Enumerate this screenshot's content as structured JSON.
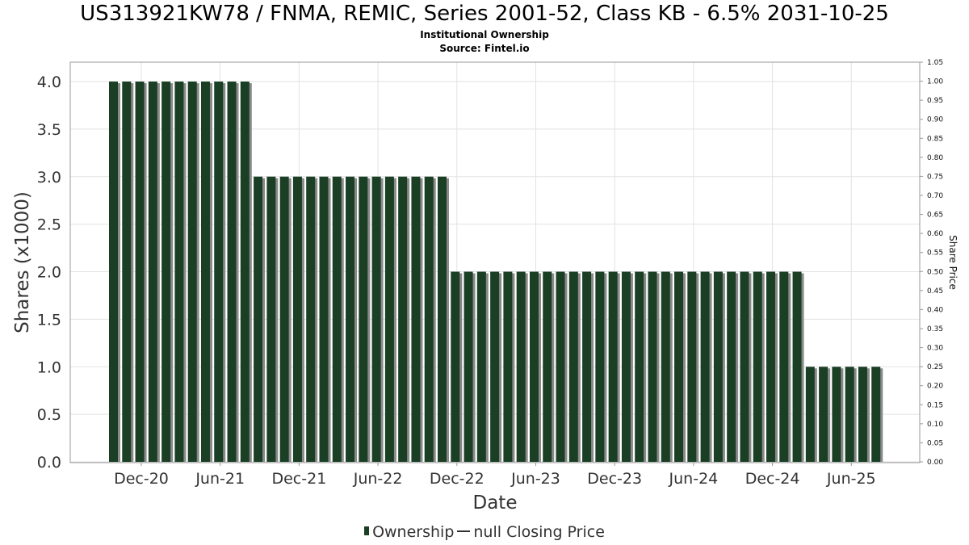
{
  "title": "US313921KW78 / FNMA, REMIC, Series 2001-52, Class KB - 6.5% 2031-10-25",
  "subtitle": "Institutional Ownership",
  "source": "Source: Fintel.io",
  "legend": {
    "ownership": "Ownership",
    "price": "null Closing Price"
  },
  "colors": {
    "bar": "#1b3f24",
    "bar_shadow": "#8a8a8a",
    "grid": "#e2e2e2",
    "axis": "#999999"
  },
  "chart_data": {
    "type": "bar",
    "xlabel": "Date",
    "ylabel": "Shares (x1000)",
    "y2label": "Share Price",
    "ylim": [
      0,
      4.2
    ],
    "y2lim": [
      0,
      1.05
    ],
    "yticks": [
      "0.0",
      "0.5",
      "1.0",
      "1.5",
      "2.0",
      "2.5",
      "3.0",
      "3.5",
      "4.0"
    ],
    "y2ticks": [
      "0.00",
      "0.05",
      "0.10",
      "0.15",
      "0.20",
      "0.25",
      "0.30",
      "0.35",
      "0.40",
      "0.45",
      "0.50",
      "0.55",
      "0.60",
      "0.65",
      "0.70",
      "0.75",
      "0.80",
      "0.85",
      "0.90",
      "0.95",
      "1.00",
      "1.05"
    ],
    "xticks": [
      "Dec-20",
      "Jun-21",
      "Dec-21",
      "Jun-22",
      "Dec-22",
      "Jun-23",
      "Dec-23",
      "Jun-24",
      "Dec-24",
      "Jun-25"
    ],
    "grid": true,
    "legend_position": "bottom",
    "series": [
      {
        "name": "Ownership",
        "values": [
          4.0,
          4.0,
          4.0,
          4.0,
          4.0,
          4.0,
          4.0,
          4.0,
          4.0,
          4.0,
          4.0,
          3.0,
          3.0,
          3.0,
          3.0,
          3.0,
          3.0,
          3.0,
          3.0,
          3.0,
          3.0,
          3.0,
          3.0,
          3.0,
          3.0,
          3.0,
          2.0,
          2.0,
          2.0,
          2.0,
          2.0,
          2.0,
          2.0,
          2.0,
          2.0,
          2.0,
          2.0,
          2.0,
          2.0,
          2.0,
          2.0,
          2.0,
          2.0,
          2.0,
          2.0,
          2.0,
          2.0,
          2.0,
          2.0,
          2.0,
          2.0,
          2.0,
          2.0,
          1.0,
          1.0,
          1.0,
          1.0,
          1.0,
          1.0
        ]
      }
    ]
  }
}
